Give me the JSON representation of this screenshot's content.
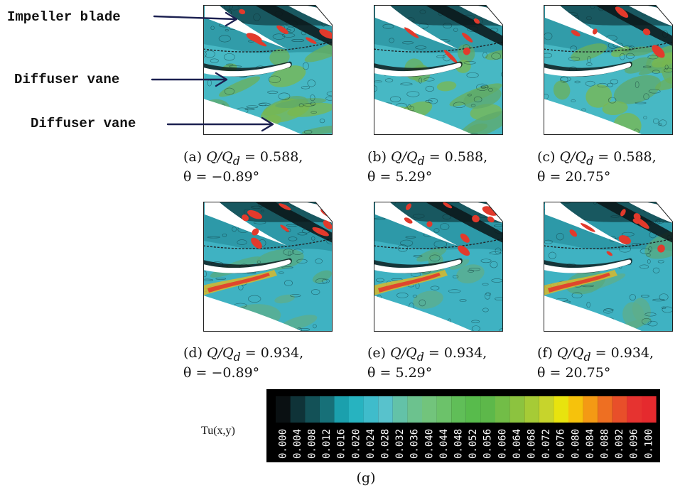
{
  "annotations": {
    "impeller_blade": "Impeller blade",
    "diffuser_vane_1": "Diffuser vane",
    "diffuser_vane_2": "Diffuser vane"
  },
  "panels": [
    {
      "id": "a",
      "tag": "(a)",
      "ratio_var": "Q/Q",
      "ratio_sub": "d",
      "ratio_val": "= 0.588,",
      "theta": "θ = −0.89°",
      "flow": 0.588
    },
    {
      "id": "b",
      "tag": "(b)",
      "ratio_var": "Q/Q",
      "ratio_sub": "d",
      "ratio_val": "= 0.588,",
      "theta": "θ = 5.29°",
      "flow": 0.588
    },
    {
      "id": "c",
      "tag": "(c)",
      "ratio_var": "Q/Q",
      "ratio_sub": "d",
      "ratio_val": "= 0.588,",
      "theta": "θ = 20.75°",
      "flow": 0.588
    },
    {
      "id": "d",
      "tag": "(d)",
      "ratio_var": "Q/Q",
      "ratio_sub": "d",
      "ratio_val": "= 0.934,",
      "theta": "θ = −0.89°",
      "flow": 0.934
    },
    {
      "id": "e",
      "tag": "(e)",
      "ratio_var": "Q/Q",
      "ratio_sub": "d",
      "ratio_val": "= 0.934,",
      "theta": "θ = 5.29°",
      "flow": 0.934
    },
    {
      "id": "f",
      "tag": "(f)",
      "ratio_var": "Q/Q",
      "ratio_sub": "d",
      "ratio_val": "= 0.934,",
      "theta": "θ = 20.75°",
      "flow": 0.934
    }
  ],
  "colorbar": {
    "variable": "Tu(x,y)",
    "ticks": [
      "0.000",
      "0.004",
      "0.008",
      "0.012",
      "0.016",
      "0.020",
      "0.024",
      "0.028",
      "0.032",
      "0.036",
      "0.040",
      "0.044",
      "0.048",
      "0.052",
      "0.056",
      "0.060",
      "0.064",
      "0.068",
      "0.072",
      "0.076",
      "0.080",
      "0.084",
      "0.088",
      "0.092",
      "0.096",
      "0.100"
    ],
    "colors": [
      "#0a1012",
      "#0f3338",
      "#135157",
      "#177078",
      "#1ba0ad",
      "#27b3c0",
      "#3fbccb",
      "#58c2cc",
      "#63c2a8",
      "#6cc28e",
      "#72c47c",
      "#6cc26a",
      "#60be58",
      "#58bb4c",
      "#5db84a",
      "#72bd47",
      "#8cc33f",
      "#a6cb36",
      "#c7d42c",
      "#e8e30e",
      "#f6c20c",
      "#f49a14",
      "#ee6f22",
      "#e84f2a",
      "#e63330",
      "#e52a2e"
    ]
  },
  "subcaption": "(g)"
}
